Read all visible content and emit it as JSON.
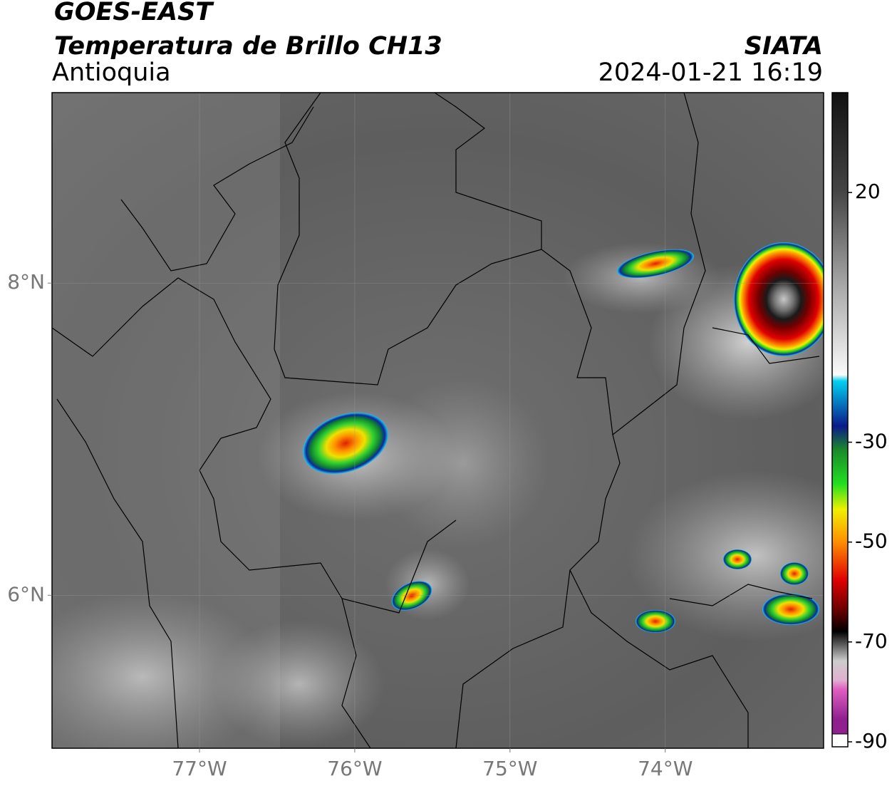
{
  "header": {
    "title": "GOES-EAST",
    "subtitle": "Temperatura de Brillo CH13",
    "region": "Antioquia",
    "source": "SIATA",
    "timestamp": "2024-01-21 16:19"
  },
  "map": {
    "xlim": [
      -77.95,
      -72.98
    ],
    "ylim": [
      5.02,
      9.22
    ],
    "xticks": [
      {
        "value": -77,
        "label": "77°W"
      },
      {
        "value": -76,
        "label": "76°W"
      },
      {
        "value": -75,
        "label": "75°W"
      },
      {
        "value": -74,
        "label": "74°W"
      }
    ],
    "yticks": [
      {
        "value": 8,
        "label": "8°N"
      },
      {
        "value": 6,
        "label": "6°N"
      }
    ],
    "grid": true
  },
  "colorbar": {
    "lim": [
      -91,
      40
    ],
    "ticks": [
      20,
      -30,
      -50,
      -70,
      -90
    ]
  }
}
